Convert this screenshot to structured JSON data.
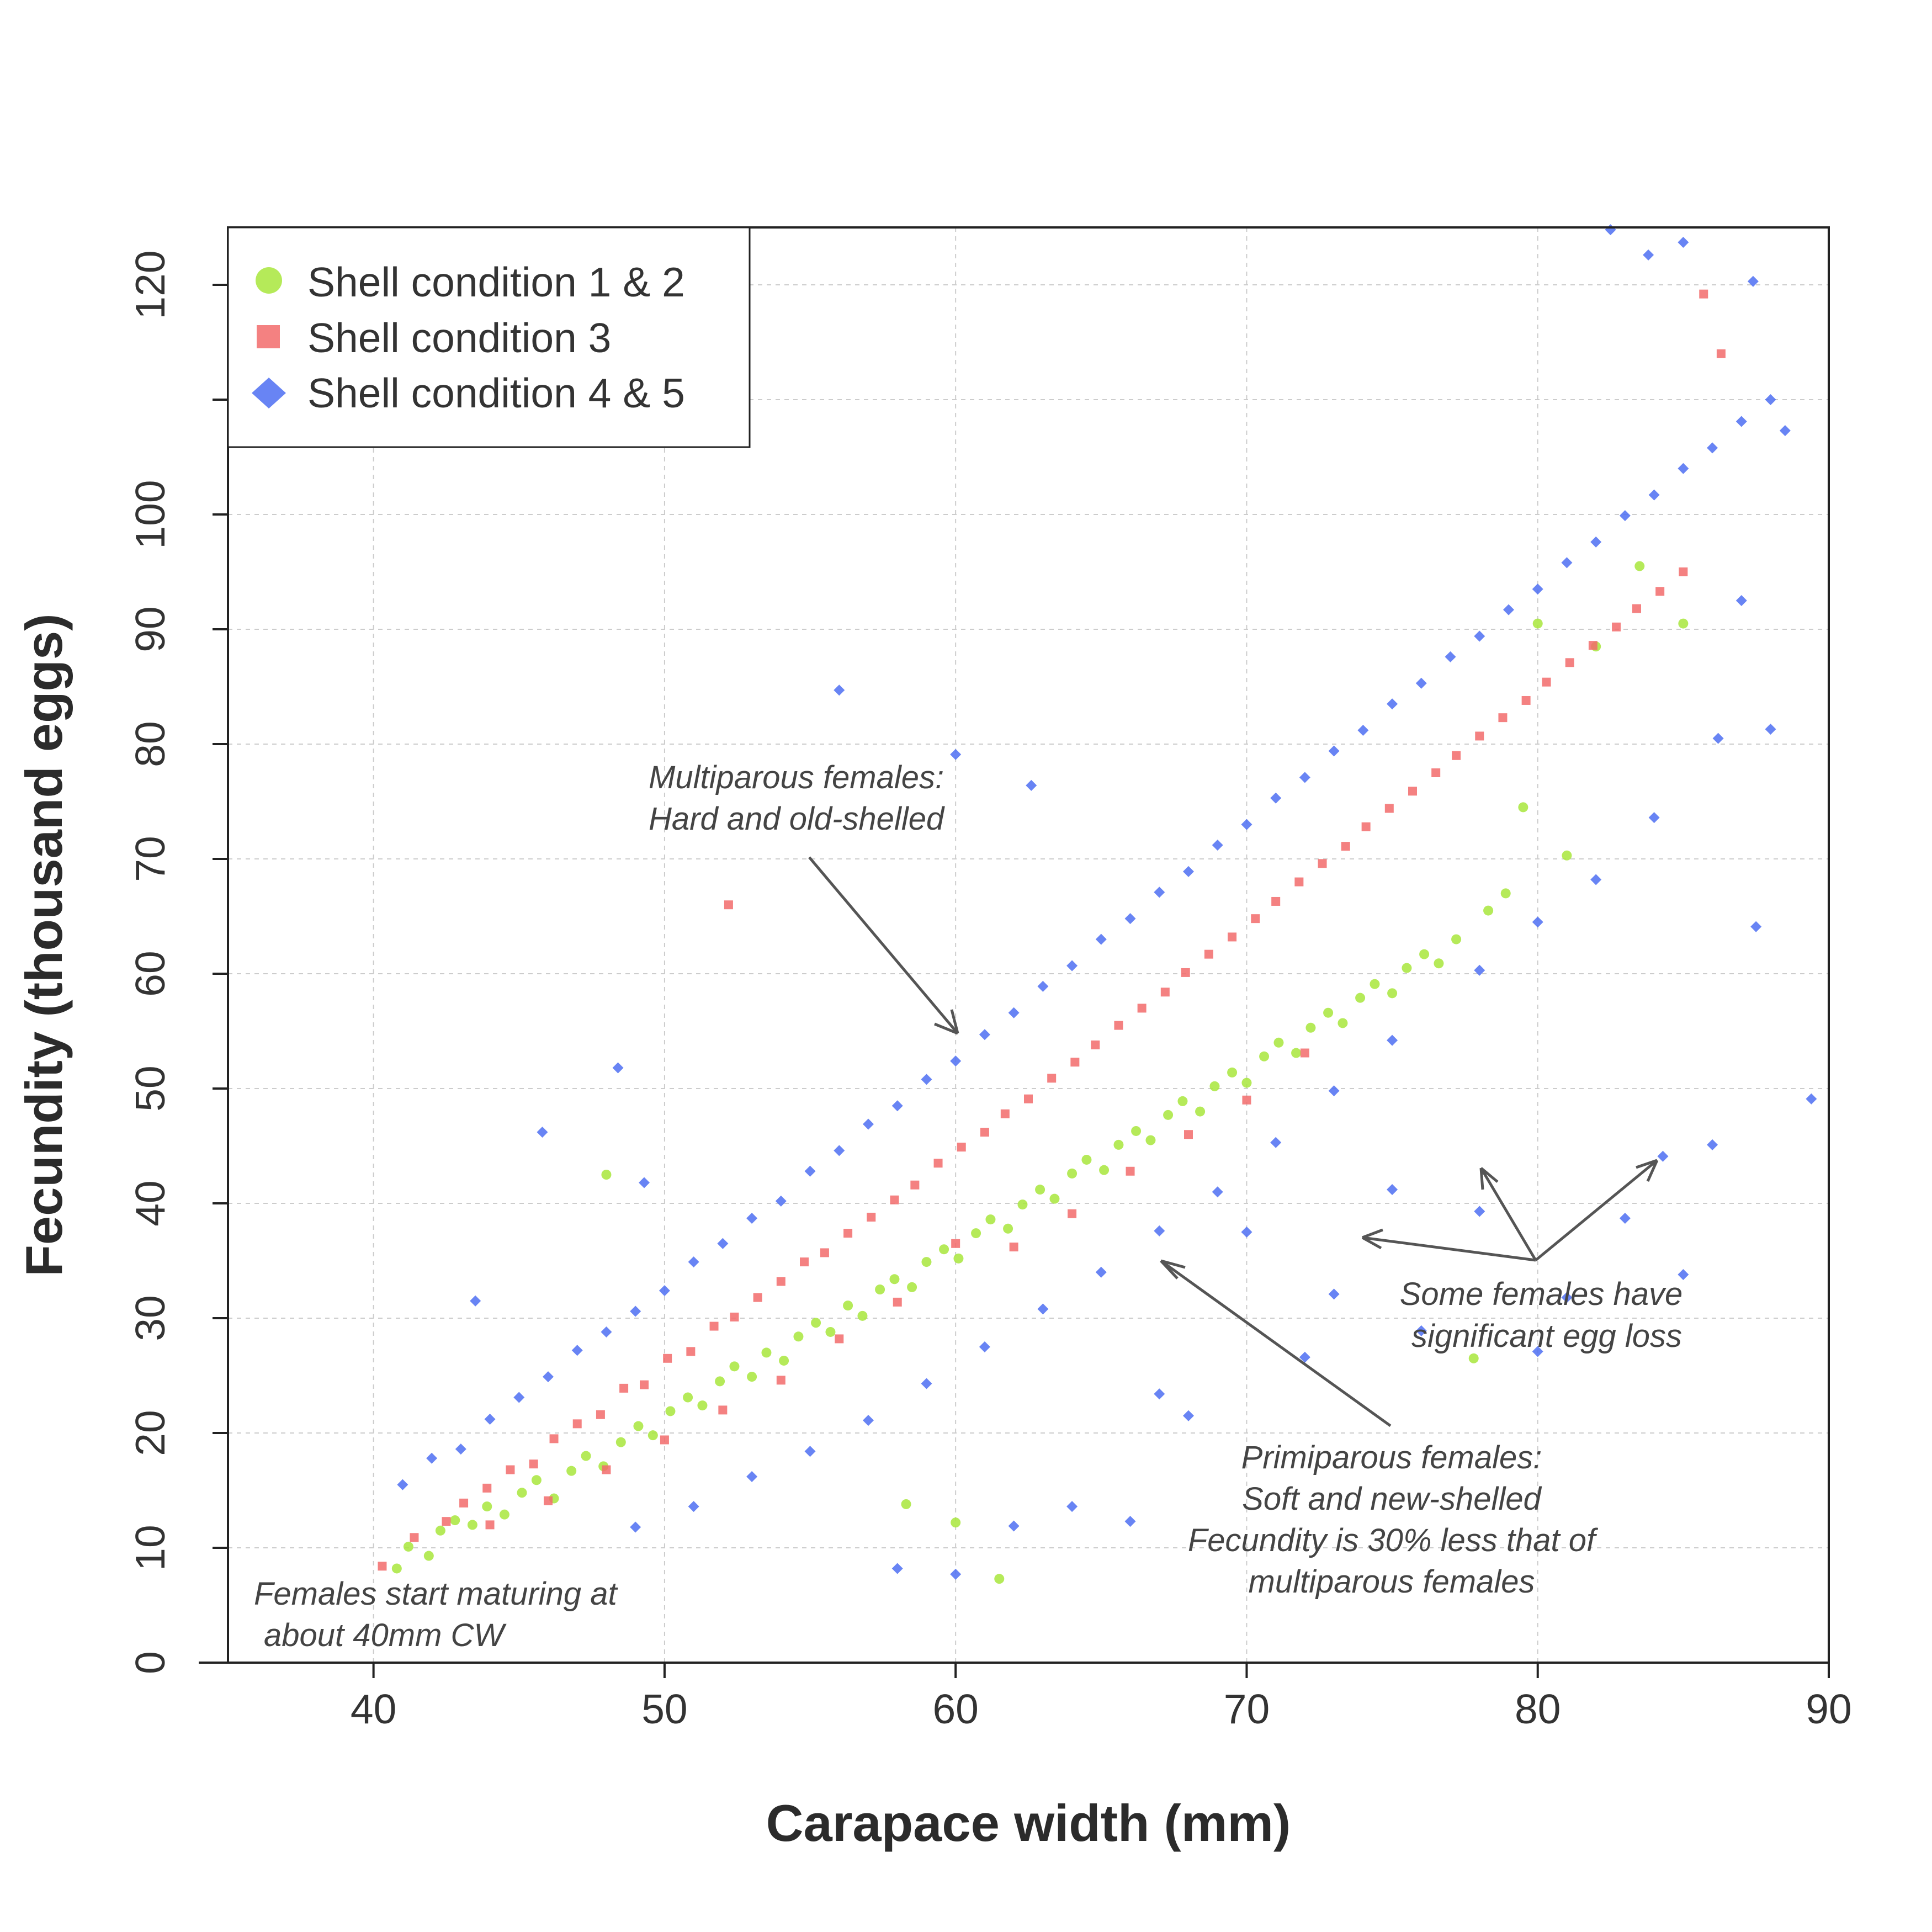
{
  "chart_data": {
    "type": "scatter",
    "title": "",
    "xlabel": "Carapace width (mm)",
    "ylabel": "Fecundity (thousand eggs)",
    "xlim": [
      35,
      90
    ],
    "ylim": [
      0,
      125
    ],
    "x_ticks": [
      40,
      50,
      60,
      70,
      80,
      90
    ],
    "y_ticks": [
      0,
      10,
      20,
      30,
      40,
      50,
      60,
      70,
      80,
      90,
      100,
      110,
      120
    ],
    "y_tick_labels": [
      "0",
      "10",
      "20",
      "30",
      "40",
      "50",
      "60",
      "70",
      "80",
      "90",
      "100",
      "",
      "120"
    ],
    "x_tick_labels": [
      "40",
      "50",
      "60",
      "70",
      "80",
      "90"
    ],
    "grid": true,
    "legend_position": "top-left",
    "series": [
      {
        "name": "Shell condition 1 & 2",
        "marker": "circle",
        "color": "#a8e63c",
        "points": [
          [
            40.8,
            8.2
          ],
          [
            41.2,
            10.1
          ],
          [
            41.9,
            9.3
          ],
          [
            42.3,
            11.5
          ],
          [
            42.8,
            12.4
          ],
          [
            43.4,
            12.0
          ],
          [
            43.9,
            13.6
          ],
          [
            44.5,
            12.9
          ],
          [
            45.1,
            14.8
          ],
          [
            45.6,
            15.9
          ],
          [
            46.2,
            14.3
          ],
          [
            46.8,
            16.7
          ],
          [
            47.3,
            18.0
          ],
          [
            47.9,
            17.1
          ],
          [
            48.0,
            42.5
          ],
          [
            48.5,
            19.2
          ],
          [
            49.1,
            20.6
          ],
          [
            49.6,
            19.8
          ],
          [
            50.2,
            21.9
          ],
          [
            50.8,
            23.1
          ],
          [
            51.3,
            22.4
          ],
          [
            51.9,
            24.5
          ],
          [
            52.4,
            25.8
          ],
          [
            53.0,
            24.9
          ],
          [
            53.5,
            27.0
          ],
          [
            54.1,
            26.3
          ],
          [
            54.6,
            28.4
          ],
          [
            55.2,
            29.6
          ],
          [
            55.7,
            28.8
          ],
          [
            56.3,
            31.1
          ],
          [
            56.8,
            30.2
          ],
          [
            57.4,
            32.5
          ],
          [
            57.9,
            33.4
          ],
          [
            58.3,
            13.8
          ],
          [
            58.5,
            32.7
          ],
          [
            59.0,
            34.9
          ],
          [
            59.6,
            36.0
          ],
          [
            60.0,
            12.2
          ],
          [
            60.1,
            35.2
          ],
          [
            60.7,
            37.4
          ],
          [
            61.2,
            38.6
          ],
          [
            61.5,
            7.3
          ],
          [
            61.8,
            37.8
          ],
          [
            62.3,
            39.9
          ],
          [
            62.9,
            41.2
          ],
          [
            63.4,
            40.4
          ],
          [
            64.0,
            42.6
          ],
          [
            64.5,
            43.8
          ],
          [
            65.1,
            42.9
          ],
          [
            65.6,
            45.1
          ],
          [
            66.2,
            46.3
          ],
          [
            66.7,
            45.5
          ],
          [
            67.3,
            47.7
          ],
          [
            67.8,
            48.9
          ],
          [
            68.4,
            48.0
          ],
          [
            68.9,
            50.2
          ],
          [
            69.5,
            51.4
          ],
          [
            70.0,
            50.5
          ],
          [
            70.6,
            52.8
          ],
          [
            71.1,
            54.0
          ],
          [
            71.7,
            53.1
          ],
          [
            72.2,
            55.3
          ],
          [
            72.8,
            56.6
          ],
          [
            73.3,
            55.7
          ],
          [
            73.9,
            57.9
          ],
          [
            74.4,
            59.1
          ],
          [
            75.0,
            58.3
          ],
          [
            75.5,
            60.5
          ],
          [
            76.1,
            61.7
          ],
          [
            76.6,
            60.9
          ],
          [
            77.2,
            63.0
          ],
          [
            77.8,
            26.5
          ],
          [
            78.3,
            65.5
          ],
          [
            78.9,
            67.0
          ],
          [
            79.5,
            74.5
          ],
          [
            80.0,
            90.5
          ],
          [
            81.0,
            70.3
          ],
          [
            82.0,
            88.5
          ],
          [
            83.5,
            95.5
          ],
          [
            85.0,
            90.5
          ]
        ]
      },
      {
        "name": "Shell condition 3",
        "marker": "square",
        "color": "#f26b6b",
        "points": [
          [
            40.3,
            8.4
          ],
          [
            41.4,
            10.9
          ],
          [
            42.5,
            12.3
          ],
          [
            43.1,
            13.9
          ],
          [
            43.9,
            15.2
          ],
          [
            44.7,
            16.8
          ],
          [
            45.5,
            17.3
          ],
          [
            46.2,
            19.5
          ],
          [
            47.0,
            20.8
          ],
          [
            47.8,
            21.6
          ],
          [
            48.6,
            23.9
          ],
          [
            49.3,
            24.2
          ],
          [
            50.1,
            26.5
          ],
          [
            50.9,
            27.1
          ],
          [
            51.7,
            29.3
          ],
          [
            52.2,
            66.0
          ],
          [
            52.4,
            30.1
          ],
          [
            53.2,
            31.8
          ],
          [
            54.0,
            33.2
          ],
          [
            54.8,
            34.9
          ],
          [
            55.5,
            35.7
          ],
          [
            56.3,
            37.4
          ],
          [
            57.1,
            38.8
          ],
          [
            57.9,
            40.3
          ],
          [
            58.6,
            41.6
          ],
          [
            59.4,
            43.5
          ],
          [
            60.2,
            44.9
          ],
          [
            61.0,
            46.2
          ],
          [
            61.7,
            47.8
          ],
          [
            62.5,
            49.1
          ],
          [
            63.3,
            50.9
          ],
          [
            64.1,
            52.3
          ],
          [
            64.8,
            53.8
          ],
          [
            65.6,
            55.5
          ],
          [
            66.4,
            57.0
          ],
          [
            67.2,
            58.4
          ],
          [
            67.9,
            60.1
          ],
          [
            68.7,
            61.7
          ],
          [
            69.5,
            63.2
          ],
          [
            70.3,
            64.8
          ],
          [
            71.0,
            66.3
          ],
          [
            71.8,
            68.0
          ],
          [
            72.6,
            69.6
          ],
          [
            73.4,
            71.1
          ],
          [
            74.1,
            72.8
          ],
          [
            74.9,
            74.4
          ],
          [
            75.7,
            75.9
          ],
          [
            76.5,
            77.5
          ],
          [
            77.2,
            79.0
          ],
          [
            78.0,
            80.7
          ],
          [
            78.8,
            82.3
          ],
          [
            79.6,
            83.8
          ],
          [
            80.3,
            85.4
          ],
          [
            81.1,
            87.1
          ],
          [
            81.9,
            88.6
          ],
          [
            82.7,
            90.2
          ],
          [
            83.4,
            91.8
          ],
          [
            84.2,
            93.3
          ],
          [
            85.0,
            95.0
          ],
          [
            85.7,
            119.2
          ],
          [
            86.3,
            114.0
          ],
          [
            60.0,
            36.5
          ],
          [
            62.0,
            36.2
          ],
          [
            64.0,
            39.1
          ],
          [
            66.0,
            42.8
          ],
          [
            68.0,
            46.0
          ],
          [
            70.0,
            49.0
          ],
          [
            72.0,
            53.1
          ],
          [
            58.0,
            31.4
          ],
          [
            56.0,
            28.2
          ],
          [
            54.0,
            24.6
          ],
          [
            52.0,
            22.0
          ],
          [
            50.0,
            19.4
          ],
          [
            48.0,
            16.8
          ],
          [
            46.0,
            14.1
          ],
          [
            44.0,
            12.0
          ]
        ]
      },
      {
        "name": "Shell condition 4 & 5",
        "marker": "diamond",
        "color": "#4e6ef2",
        "points": [
          [
            41.0,
            15.5
          ],
          [
            42.0,
            17.8
          ],
          [
            43.0,
            18.6
          ],
          [
            43.5,
            31.5
          ],
          [
            44.0,
            21.2
          ],
          [
            45.0,
            23.1
          ],
          [
            45.8,
            46.2
          ],
          [
            46.0,
            24.9
          ],
          [
            47.0,
            27.2
          ],
          [
            48.0,
            28.8
          ],
          [
            48.4,
            51.8
          ],
          [
            49.0,
            30.6
          ],
          [
            49.3,
            41.8
          ],
          [
            50.0,
            32.4
          ],
          [
            51.0,
            34.9
          ],
          [
            52.0,
            36.5
          ],
          [
            53.0,
            38.7
          ],
          [
            54.0,
            40.2
          ],
          [
            55.0,
            42.8
          ],
          [
            56.0,
            44.6
          ],
          [
            56.0,
            84.7
          ],
          [
            57.0,
            46.9
          ],
          [
            58.0,
            48.5
          ],
          [
            59.0,
            50.8
          ],
          [
            60.0,
            52.4
          ],
          [
            60.0,
            79.1
          ],
          [
            61.0,
            54.7
          ],
          [
            62.0,
            56.6
          ],
          [
            62.6,
            76.4
          ],
          [
            63.0,
            58.9
          ],
          [
            64.0,
            60.7
          ],
          [
            65.0,
            63.0
          ],
          [
            66.0,
            64.8
          ],
          [
            67.0,
            67.1
          ],
          [
            68.0,
            68.9
          ],
          [
            69.0,
            71.2
          ],
          [
            70.0,
            73.0
          ],
          [
            71.0,
            75.3
          ],
          [
            72.0,
            77.1
          ],
          [
            73.0,
            79.4
          ],
          [
            74.0,
            81.2
          ],
          [
            75.0,
            83.5
          ],
          [
            76.0,
            85.3
          ],
          [
            77.0,
            87.6
          ],
          [
            78.0,
            89.4
          ],
          [
            79.0,
            91.7
          ],
          [
            80.0,
            93.5
          ],
          [
            81.0,
            95.8
          ],
          [
            82.0,
            97.6
          ],
          [
            83.0,
            99.9
          ],
          [
            84.0,
            101.7
          ],
          [
            85.0,
            104.0
          ],
          [
            86.0,
            105.8
          ],
          [
            87.0,
            108.1
          ],
          [
            88.0,
            110.0
          ],
          [
            82.5,
            124.8
          ],
          [
            83.8,
            122.6
          ],
          [
            85.0,
            123.7
          ],
          [
            87.4,
            120.3
          ],
          [
            88.5,
            107.3
          ],
          [
            89.4,
            49.1
          ],
          [
            87.5,
            64.1
          ],
          [
            84.3,
            44.1
          ],
          [
            85.0,
            33.8
          ],
          [
            81.0,
            31.8
          ],
          [
            78.0,
            39.3
          ],
          [
            75.0,
            41.2
          ],
          [
            73.0,
            32.1
          ],
          [
            70.0,
            37.5
          ],
          [
            67.0,
            23.4
          ],
          [
            64.0,
            13.6
          ],
          [
            62.0,
            11.9
          ],
          [
            58.0,
            8.2
          ],
          [
            60.0,
            7.7
          ],
          [
            66.0,
            12.3
          ],
          [
            68.0,
            21.5
          ],
          [
            72.0,
            26.6
          ],
          [
            76.0,
            28.9
          ],
          [
            80.0,
            27.1
          ],
          [
            83.0,
            38.7
          ],
          [
            86.0,
            45.1
          ],
          [
            88.0,
            81.3
          ],
          [
            86.2,
            80.5
          ],
          [
            87.0,
            92.5
          ],
          [
            84.0,
            73.6
          ],
          [
            82.0,
            68.2
          ],
          [
            80.0,
            64.5
          ],
          [
            78.0,
            60.3
          ],
          [
            75.0,
            54.2
          ],
          [
            73.0,
            49.8
          ],
          [
            71.0,
            45.3
          ],
          [
            69.0,
            41.0
          ],
          [
            67.0,
            37.6
          ],
          [
            65.0,
            34.0
          ],
          [
            63.0,
            30.8
          ],
          [
            61.0,
            27.5
          ],
          [
            59.0,
            24.3
          ],
          [
            57.0,
            21.1
          ],
          [
            55.0,
            18.4
          ],
          [
            53.0,
            16.2
          ],
          [
            51.0,
            13.6
          ],
          [
            49.0,
            11.8
          ]
        ]
      }
    ],
    "annotations": [
      {
        "lines": [
          "Multiparous females:",
          "Hard and old-shelled"
        ]
      },
      {
        "lines": [
          "Some females have",
          "significant egg loss"
        ]
      },
      {
        "lines": [
          "Primiparous females:",
          "Soft and new-shelled",
          "Fecundity is 30% less that of",
          "multiparous females"
        ]
      },
      {
        "lines": [
          "Females start maturing at",
          "about 40mm CW"
        ]
      }
    ]
  }
}
